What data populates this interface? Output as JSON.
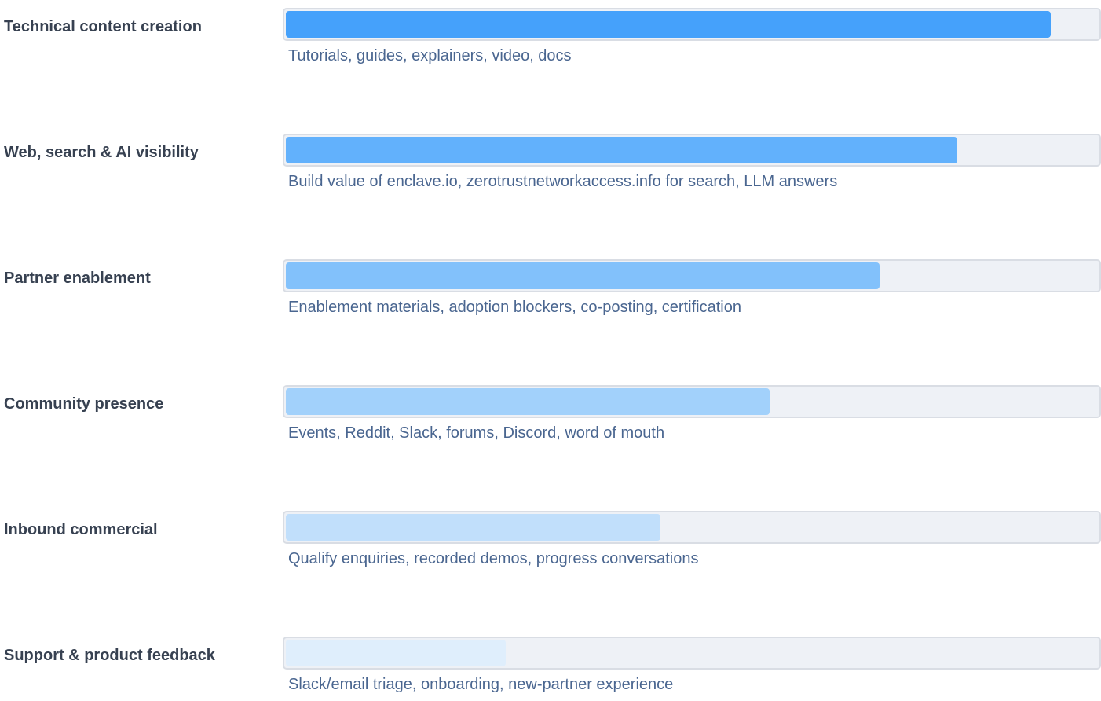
{
  "chart_data": {
    "type": "bar",
    "orientation": "horizontal",
    "xlim": [
      0,
      100
    ],
    "grid": false,
    "bars": [
      {
        "category": "Technical content creation",
        "description": "Tutorials, guides, explainers, video, docs",
        "value": 94,
        "color": "#45a1fb"
      },
      {
        "category": "Web, search & AI visibility",
        "description": "Build value of enclave.io, zerotrustnetworkaccess.info for search, LLM answers",
        "value": 82.5,
        "color": "#62b1fc"
      },
      {
        "category": "Partner enablement",
        "description": "Enablement materials, adoption blockers, co-posting, certification",
        "value": 73,
        "color": "#82c1fb"
      },
      {
        "category": "Community presence",
        "description": "Events, Reddit, Slack, forums, Discord, word of mouth",
        "value": 59.5,
        "color": "#a2d1fb"
      },
      {
        "category": "Inbound commercial",
        "description": "Qualify enquiries, recorded demos, progress conversations",
        "value": 46,
        "color": "#c1dffb"
      },
      {
        "category": "Support & product feedback",
        "description": "Slack/email triage, onboarding, new-partner experience",
        "value": 27,
        "color": "#dfeefc"
      }
    ]
  }
}
